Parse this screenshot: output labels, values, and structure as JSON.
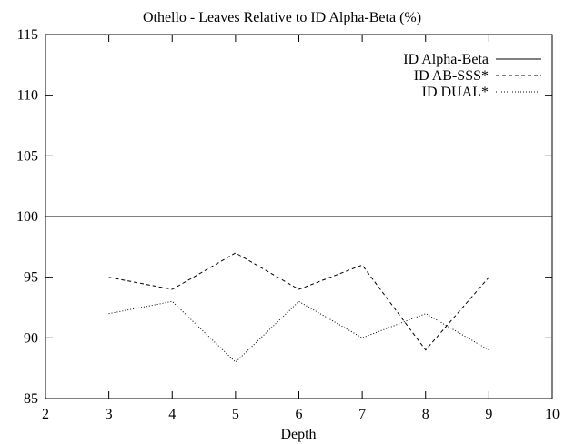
{
  "chart_data": {
    "type": "line",
    "title": "Othello - Leaves Relative to ID Alpha-Beta (%)",
    "xlabel": "Depth",
    "ylabel": "",
    "xlim": [
      2,
      10
    ],
    "ylim": [
      85,
      115
    ],
    "xticks": [
      2,
      3,
      4,
      5,
      6,
      7,
      8,
      9,
      10
    ],
    "yticks": [
      85,
      90,
      95,
      100,
      105,
      110,
      115
    ],
    "grid": false,
    "legend_position": "top-right",
    "series": [
      {
        "name": "ID Alpha-Beta",
        "style": "solid",
        "x": [
          2,
          10
        ],
        "y": [
          100,
          100
        ]
      },
      {
        "name": "ID AB-SSS*",
        "style": "dashed",
        "x": [
          3,
          4,
          5,
          6,
          7,
          8,
          9
        ],
        "y": [
          95,
          94,
          97,
          94,
          96,
          89,
          95
        ]
      },
      {
        "name": "ID DUAL*",
        "style": "dotted",
        "x": [
          3,
          4,
          5,
          6,
          7,
          8,
          9
        ],
        "y": [
          92,
          93,
          88,
          93,
          90,
          92,
          89
        ]
      }
    ]
  }
}
